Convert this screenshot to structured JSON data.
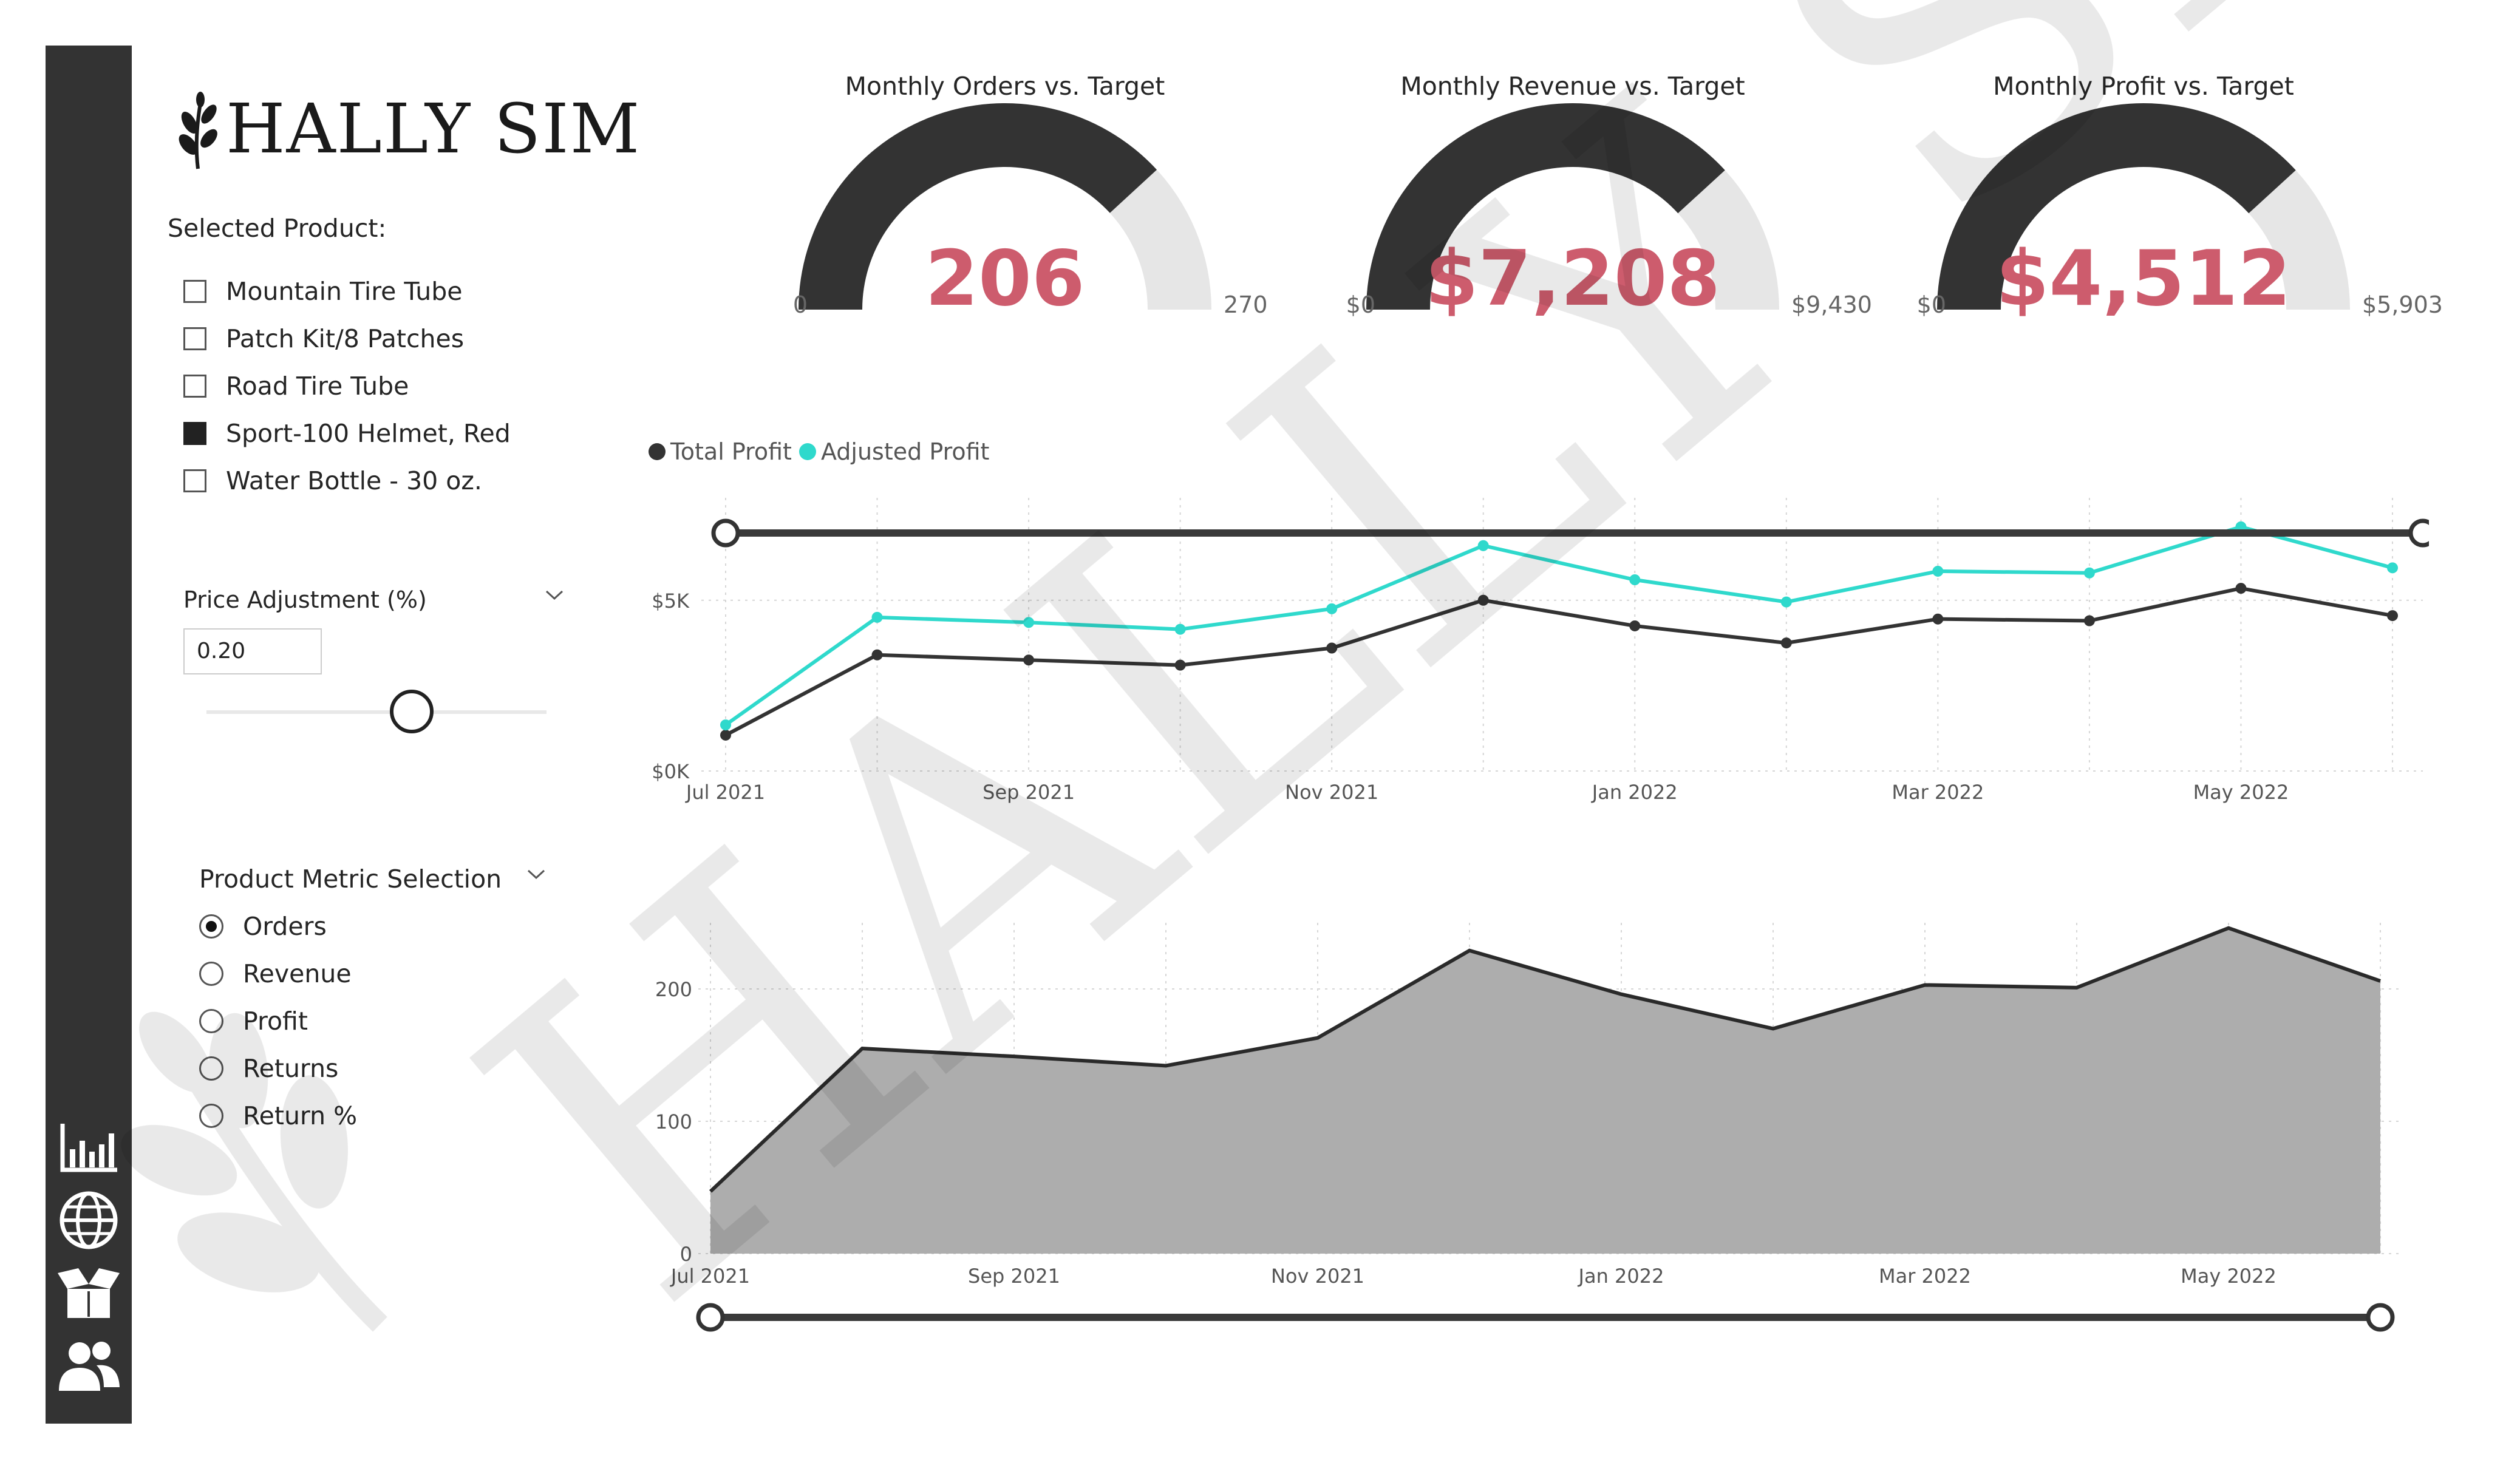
{
  "brand": {
    "name": "HALLY SIM",
    "logo_icon": "leaf-sprig-icon"
  },
  "sidebar": {
    "icons": [
      "bar-chart-icon",
      "globe-icon",
      "open-box-icon",
      "users-icon"
    ]
  },
  "product_filter": {
    "title": "Selected Product:",
    "items": [
      {
        "label": "Mountain Tire Tube",
        "checked": false
      },
      {
        "label": "Patch Kit/8 Patches",
        "checked": false
      },
      {
        "label": "Road Tire Tube",
        "checked": false
      },
      {
        "label": "Sport-100 Helmet, Red",
        "checked": true
      },
      {
        "label": "Water Bottle - 30 oz.",
        "checked": false
      }
    ]
  },
  "price_adjustment": {
    "title": "Price Adjustment (%)",
    "value": "0.20",
    "slider_fraction": 0.6
  },
  "metric_selection": {
    "title": "Product Metric Selection",
    "options": [
      {
        "label": "Orders",
        "selected": true
      },
      {
        "label": "Revenue",
        "selected": false
      },
      {
        "label": "Profit",
        "selected": false
      },
      {
        "label": "Returns",
        "selected": false
      },
      {
        "label": "Return %",
        "selected": false
      }
    ]
  },
  "gauges": [
    {
      "title": "Monthly Orders vs. Target",
      "value": "206",
      "min": "0",
      "max": "270",
      "fraction": 0.763
    },
    {
      "title": "Monthly Revenue vs. Target",
      "value": "$7,208",
      "min": "$0",
      "max": "$9,430",
      "fraction": 0.764
    },
    {
      "title": "Monthly Profit vs. Target",
      "value": "$4,512",
      "min": "$0",
      "max": "$5,903",
      "fraction": 0.764
    }
  ],
  "colors": {
    "sidebar": "#333333",
    "gauge_fill": "#333333",
    "gauge_track": "#e6e6e6",
    "kpi_value": "#cd5c6d",
    "adjusted_profit": "#2fd9cc",
    "total_profit": "#333333",
    "area_fill": "#adadad"
  },
  "chart_data": [
    {
      "type": "line",
      "title": "",
      "legend_position": "top-left",
      "x": [
        "Jul 2021",
        "Aug 2021",
        "Sep 2021",
        "Oct 2021",
        "Nov 2021",
        "Dec 2021",
        "Jan 2022",
        "Feb 2022",
        "Mar 2022",
        "Apr 2022",
        "May 2022",
        "Jun 2022"
      ],
      "x_tick_labels": [
        "Jul 2021",
        "Sep 2021",
        "Nov 2021",
        "Jan 2022",
        "Mar 2022",
        "May 2022"
      ],
      "y_tick_labels": [
        "$0K",
        "$5K"
      ],
      "ylim": [
        0,
        8000
      ],
      "grid": true,
      "series": [
        {
          "name": "Total Profit",
          "values": [
            1050,
            3400,
            3250,
            3100,
            3600,
            5000,
            4250,
            3750,
            4450,
            4400,
            5350,
            4550
          ]
        },
        {
          "name": "Adjusted Profit",
          "values": [
            1350,
            4500,
            4350,
            4150,
            4750,
            6600,
            5600,
            4950,
            5850,
            5800,
            7150,
            5950
          ]
        }
      ]
    },
    {
      "type": "area",
      "title": "",
      "x": [
        "Jul 2021",
        "Aug 2021",
        "Sep 2021",
        "Oct 2021",
        "Nov 2021",
        "Dec 2021",
        "Jan 2022",
        "Feb 2022",
        "Mar 2022",
        "Apr 2022",
        "May 2022",
        "Jun 2022"
      ],
      "x_tick_labels": [
        "Jul 2021",
        "Sep 2021",
        "Nov 2021",
        "Jan 2022",
        "Mar 2022",
        "May 2022"
      ],
      "y_tick_labels": [
        "0",
        "100",
        "200"
      ],
      "ylim": [
        0,
        250
      ],
      "grid": true,
      "series": [
        {
          "name": "Orders",
          "values": [
            47,
            155,
            149,
            142,
            163,
            229,
            196,
            170,
            203,
            201,
            246,
            206
          ]
        }
      ]
    }
  ]
}
